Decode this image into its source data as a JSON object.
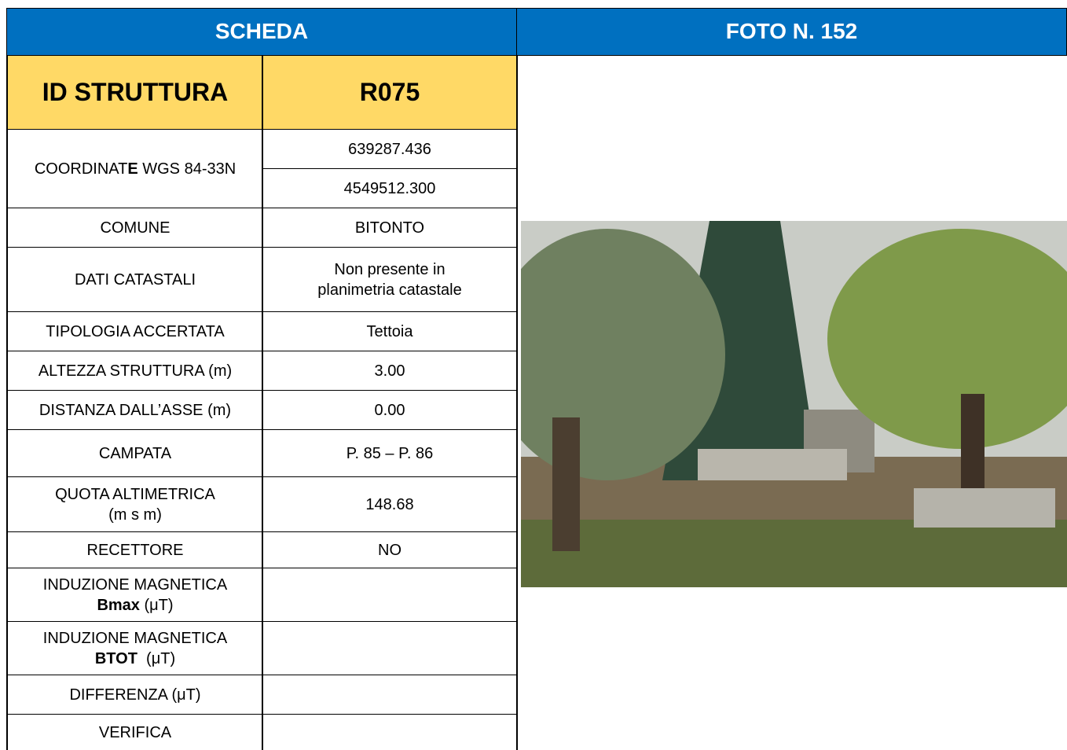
{
  "header": {
    "left": "SCHEDA",
    "right": "FOTO N. 152"
  },
  "id_row": {
    "label": "ID STRUTTURA",
    "value": "R075"
  },
  "coordinates": {
    "label": [
      [
        "COORDINAT",
        {
          "text": "E",
          "bold": true
        },
        " WGS 84-33N"
      ]
    ],
    "values": [
      "639287.436",
      "4549512.300"
    ]
  },
  "rows": [
    {
      "label": [
        [
          "COMUNE"
        ]
      ],
      "value": [
        [
          "BITONTO"
        ]
      ]
    },
    {
      "label": [
        [
          "DATI CATASTALI"
        ]
      ],
      "value": [
        [
          "Non presente in"
        ],
        [
          "planimetria catastale"
        ]
      ]
    },
    {
      "label": [
        [
          "TIPOLOGIA ACCERTATA"
        ]
      ],
      "value": [
        [
          "Tettoia"
        ]
      ]
    },
    {
      "label": [
        [
          "ALTEZZA STRUTTURA (m)"
        ]
      ],
      "value": [
        [
          "3.00"
        ]
      ]
    },
    {
      "label": [
        [
          "DISTANZA DALL’ASSE (m)"
        ]
      ],
      "value": [
        [
          "0.00"
        ]
      ]
    },
    {
      "label": [
        [
          "CAMPATA"
        ]
      ],
      "value": [
        [
          "P. 85 – P. 86"
        ]
      ]
    },
    {
      "label": [
        [
          "QUOTA ALTIMETRICA"
        ],
        [
          "(m s m)"
        ]
      ],
      "value": [
        [
          "148.68"
        ]
      ]
    },
    {
      "label": [
        [
          "RECETTORE"
        ]
      ],
      "value": [
        [
          "NO"
        ]
      ]
    },
    {
      "label": [
        [
          "INDUZIONE MAGNETICA"
        ],
        [
          {
            "text": "Bmax",
            "bold": true
          },
          " (μT)"
        ]
      ]
    },
    {
      "label": [
        [
          "INDUZIONE MAGNETICA"
        ],
        [
          {
            "text": "BTOT",
            "bold": true
          },
          "  (μT)"
        ]
      ]
    },
    {
      "label": [
        [
          "DIFFERENZA (μT)"
        ]
      ]
    },
    {
      "label": [
        [
          "VERIFICA"
        ]
      ]
    }
  ]
}
